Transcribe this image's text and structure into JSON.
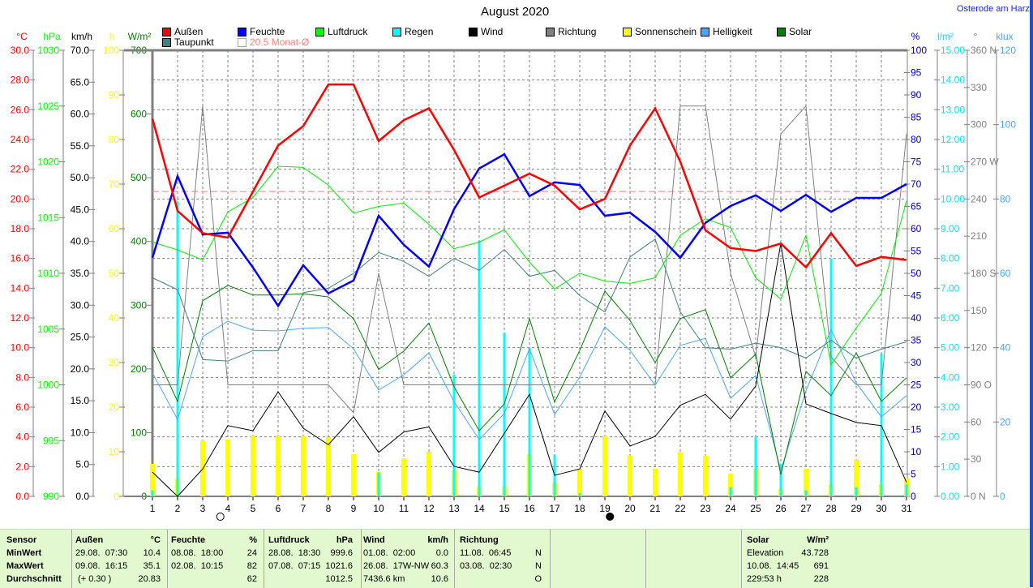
{
  "title": "August 2020",
  "location": "Osterode am Harz",
  "legend": [
    {
      "label": "Außen",
      "color": "#ff0000"
    },
    {
      "label": "Feuchte",
      "color": "#0000ff"
    },
    {
      "label": "Luftdruck",
      "color": "#00ff00"
    },
    {
      "label": "Regen",
      "color": "#00ffff"
    },
    {
      "label": "Wind",
      "color": "#000000"
    },
    {
      "label": "Richtung",
      "color": "#808080"
    },
    {
      "label": "Sonnenschein",
      "color": "#ffff00"
    },
    {
      "label": "Helligkeit",
      "color": "#4da6ff"
    },
    {
      "label": "Solar",
      "color": "#008000"
    },
    {
      "label": "Taupunkt",
      "color": "#408080"
    }
  ],
  "monthly_avg_label": "20.5 Monat-Ø",
  "chart_data": {
    "type": "line",
    "title": "August 2020",
    "x": [
      1,
      2,
      3,
      4,
      5,
      6,
      7,
      8,
      9,
      10,
      11,
      12,
      13,
      14,
      15,
      16,
      17,
      18,
      19,
      20,
      21,
      22,
      23,
      24,
      25,
      26,
      27,
      28,
      29,
      30,
      31
    ],
    "xlim": [
      1,
      31
    ],
    "grid": true,
    "y_axes_left": [
      {
        "unit": "°C",
        "color": "#ff0000",
        "min": 0,
        "max": 30,
        "step": 2,
        "decimals": 1
      },
      {
        "unit": "hPa",
        "color": "#00ff00",
        "min": 990,
        "max": 1030,
        "step": 5,
        "decimals": 0
      },
      {
        "unit": "km/h",
        "color": "#000000",
        "min": 0,
        "max": 70,
        "step": 5,
        "decimals": 1
      },
      {
        "unit": "h",
        "color": "#ffff00",
        "min": 0,
        "max": 100,
        "step": 10,
        "decimals": 0
      },
      {
        "unit": "W/m²",
        "color": "#008000",
        "min": 0,
        "max": 700,
        "step": 100,
        "decimals": 0
      }
    ],
    "y_axes_right": [
      {
        "unit": "%",
        "color": "#0000c0",
        "min": 0,
        "max": 100,
        "step": 5,
        "decimals": 0
      },
      {
        "unit": "l/m²",
        "color": "#00e5ff",
        "min": 0,
        "max": 15,
        "step": 1,
        "decimals": 2
      },
      {
        "unit": "°",
        "color": "#808080",
        "min": 0,
        "max": 360,
        "step": 30,
        "decimals": 0,
        "suffix": {
          "360": "N",
          "270": "W",
          "180": "S",
          "90": "O",
          "0": "N"
        }
      },
      {
        "unit": "klux",
        "color": "#4da6ff",
        "min": 0,
        "max": 120,
        "step": 20,
        "decimals": 0
      }
    ],
    "monthly_avg": {
      "value": 20.5,
      "axis": "°C",
      "color": "#ff8080"
    },
    "moon_phases": [
      {
        "day": 3.7,
        "phase": "full"
      },
      {
        "day": 19.2,
        "phase": "new"
      }
    ],
    "series": [
      {
        "name": "Sonnenschein",
        "kind": "bar",
        "axis": "h",
        "color": "#ffff00",
        "values": [
          7.3,
          4,
          12.5,
          12.7,
          13.6,
          13.6,
          13.5,
          13.3,
          9.5,
          5.5,
          8.5,
          10,
          5.8,
          2.2,
          2.2,
          9.5,
          3,
          6.2,
          13.5,
          9.1,
          6.2,
          9.8,
          9.1,
          5.1,
          6.2,
          1.6,
          6.2,
          2.7,
          8.2,
          2.7,
          4
        ]
      },
      {
        "name": "Regen",
        "kind": "bar",
        "axis": "l/m²",
        "color": "#00ffff",
        "values": [
          0.2,
          9.9,
          0,
          0,
          0,
          0,
          0,
          0,
          0,
          0.8,
          0,
          0,
          4.1,
          8.6,
          5.5,
          5.0,
          1.4,
          0.1,
          0,
          0,
          0,
          0,
          0,
          0.3,
          2.0,
          1.1,
          0.2,
          8.0,
          0.3,
          4.8,
          0.4
        ]
      },
      {
        "name": "Richtung",
        "kind": "line",
        "axis": "°",
        "color": "#808080",
        "values": [
          90,
          90,
          315,
          90,
          90,
          90,
          90,
          90,
          67.5,
          180,
          90,
          90,
          90,
          90,
          90,
          90,
          90,
          90,
          90,
          90,
          90,
          315,
          315,
          180,
          112.5,
          292.5,
          315,
          112.5,
          90,
          90,
          292.5
        ]
      },
      {
        "name": "Helligkeit",
        "kind": "line",
        "axis": "klux",
        "color": "#4da6ff",
        "values": [
          33.2,
          20.7,
          43,
          47.1,
          44.7,
          44.5,
          45.2,
          45.4,
          39.7,
          28.6,
          32.7,
          38.6,
          25.5,
          15.3,
          22.3,
          39.7,
          22,
          32.1,
          45.6,
          39.3,
          29.9,
          40.6,
          42.5,
          26.4,
          32.5,
          7,
          28.4,
          44.9,
          30.5,
          21.4,
          27.1
        ]
      },
      {
        "name": "Solar",
        "kind": "line",
        "axis": "W/m²",
        "color": "#008000",
        "values": [
          234,
          149,
          307,
          331,
          316,
          316,
          318,
          313,
          279,
          199,
          228,
          272,
          172,
          103,
          145,
          279,
          148,
          229,
          322,
          276,
          210,
          279,
          293,
          186,
          223,
          34,
          196,
          158,
          225,
          149,
          186
        ]
      },
      {
        "name": "Taupunkt",
        "kind": "line",
        "axis": "°C",
        "color": "#408080",
        "values": [
          14.7,
          13.9,
          9.2,
          9.1,
          9.8,
          9.8,
          13.7,
          14.0,
          15.0,
          16.4,
          15.8,
          14.8,
          16.0,
          15.2,
          16.6,
          14.8,
          15.2,
          13.5,
          12.4,
          16.1,
          17.3,
          12.4,
          10.0,
          9.9,
          10.3,
          10.0,
          9.3,
          10.5,
          9.3,
          9.9,
          10.4
        ]
      },
      {
        "name": "Luftdruck",
        "kind": "line",
        "axis": "hPa",
        "color": "#00ee00",
        "values": [
          1012.8,
          1012.1,
          1011.2,
          1015.5,
          1016.8,
          1019.6,
          1019.5,
          1017.9,
          1015.4,
          1016,
          1016.3,
          1014.4,
          1012.2,
          1012.8,
          1013.9,
          1011,
          1008.6,
          1010,
          1009.3,
          1009.1,
          1009.6,
          1013.4,
          1014.9,
          1014.1,
          1009.6,
          1007.7,
          1013.4,
          1001.8,
          1005.1,
          1008.2,
          1016.5
        ]
      },
      {
        "name": "Wind",
        "kind": "line",
        "axis": "km/h",
        "color": "#000000",
        "values": [
          3.8,
          0,
          4.3,
          11.1,
          10.3,
          16.4,
          10.7,
          8.1,
          12.5,
          6.9,
          10.1,
          10.9,
          4.7,
          3.8,
          9.9,
          16.0,
          3.3,
          4.3,
          13.4,
          7.9,
          9.4,
          14.3,
          16,
          12.1,
          17.3,
          39.7,
          14.5,
          13,
          11.6,
          11.1,
          2.2
        ]
      },
      {
        "name": "Feuchte",
        "kind": "line",
        "axis": "%",
        "color": "#0000ff",
        "bold": true,
        "values": [
          53.5,
          71.8,
          58.7,
          59.1,
          51.3,
          42.7,
          51.8,
          45.5,
          48.4,
          62.9,
          56.4,
          51.5,
          64.4,
          73.5,
          76.7,
          67.3,
          70.4,
          69.8,
          62.9,
          63.6,
          59.3,
          53.5,
          61.3,
          65.1,
          67.5,
          64,
          67.6,
          63.8,
          66.9,
          66.9,
          70
        ]
      },
      {
        "name": "Außen",
        "kind": "line",
        "axis": "°C",
        "color": "#ff0000",
        "bold": true,
        "values": [
          25.4,
          19.2,
          17.7,
          17.4,
          20.5,
          23.6,
          24.9,
          27.7,
          27.7,
          23.9,
          25.3,
          26.1,
          23.3,
          20.1,
          20.9,
          21.7,
          20.9,
          19.3,
          20.0,
          23.6,
          26.1,
          22.5,
          17.9,
          16.7,
          16.5,
          17.0,
          15.4,
          17.7,
          15.5,
          16.1,
          15.9
        ]
      }
    ]
  },
  "stats": {
    "sensor_col": [
      "Sensor",
      "MinWert",
      "MaxWert",
      "Durchschnitt"
    ],
    "groups": [
      {
        "name": "Außen",
        "unit": "°C",
        "rows": [
          [
            "29.08.  07:30",
            "10.4"
          ],
          [
            "09.08.  16:15",
            "35.1"
          ],
          [
            " (+ 0.30 )",
            "20.83"
          ]
        ]
      },
      {
        "name": "Feuchte",
        "unit": "%",
        "rows": [
          [
            "08.08.  18:00",
            "24"
          ],
          [
            "02.08.  10:15",
            "82"
          ],
          [
            "",
            "62"
          ]
        ]
      },
      {
        "name": "Luftdruck",
        "unit": "hPa",
        "rows": [
          [
            "28.08.  18:30",
            "999.6"
          ],
          [
            "07.08.  07:15",
            "1021.6"
          ],
          [
            "",
            "1012.5"
          ]
        ]
      },
      {
        "name": "Wind",
        "unit": "km/h",
        "rows": [
          [
            "01.08.  02:00",
            "0.0"
          ],
          [
            "26.08.  17W-NW",
            "60.3"
          ],
          [
            "7436.6 km",
            "10.6"
          ]
        ]
      },
      {
        "name": "Richtung",
        "unit": "",
        "rows": [
          [
            "11.08.  06:45",
            "N"
          ],
          [
            "03.08.  02:30",
            "N"
          ],
          [
            "",
            "O"
          ]
        ]
      },
      {
        "name": "Solar",
        "unit": "W/m²",
        "rows": [
          [
            "Elevation",
            "43.728"
          ],
          [
            "10.08.  14:45",
            "691"
          ],
          [
            "229:53 h",
            "228"
          ]
        ]
      }
    ]
  }
}
